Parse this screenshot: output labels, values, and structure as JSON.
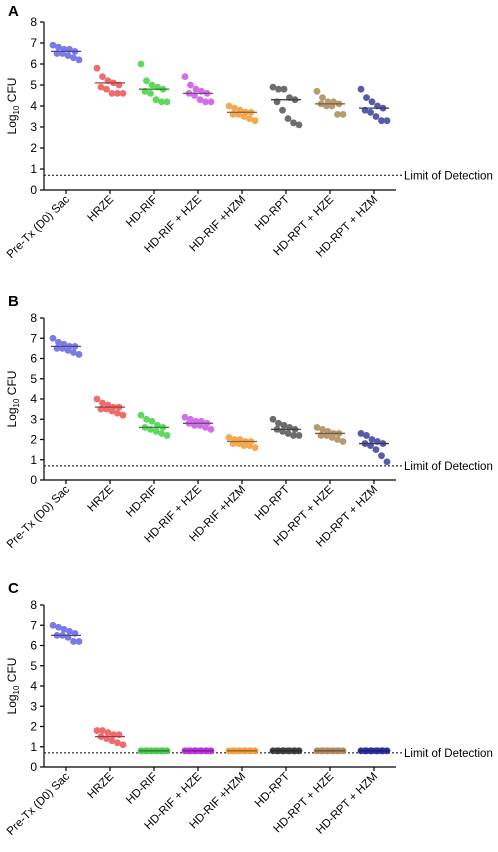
{
  "chart_data": [
    {
      "type": "dot",
      "panel_label": "A",
      "ylabel_main": "Log",
      "ylabel_sub": "10",
      "ylabel_unit": "CFU",
      "categories": [
        "Pre-Tx (D0) Sac",
        "HRZE",
        "HD-RIF",
        "HD-RIF + HZE",
        "HD-RIF +HZM",
        "HD-RPT",
        "HD-RPT + HZE",
        "HD-RPT + HZM"
      ],
      "colors": [
        "#7b7be8",
        "#f06c6c",
        "#5ed85e",
        "#d070e8",
        "#f5a851",
        "#6d6d6d",
        "#b89a70",
        "#5a5aaa"
      ],
      "values": [
        [
          6.9,
          6.8,
          6.7,
          6.7,
          6.6,
          6.5,
          6.5,
          6.4,
          6.3,
          6.2
        ],
        [
          5.8,
          5.4,
          5.2,
          5.1,
          5.0,
          4.9,
          4.8,
          4.6,
          4.6,
          4.6
        ],
        [
          6.0,
          5.2,
          5.0,
          4.9,
          4.8,
          4.7,
          4.6,
          4.3,
          4.2,
          4.2
        ],
        [
          5.4,
          5.0,
          4.8,
          4.7,
          4.6,
          4.6,
          4.5,
          4.3,
          4.2,
          4.2
        ],
        [
          4.0,
          3.9,
          3.8,
          3.7,
          3.7,
          3.6,
          3.6,
          3.5,
          3.4,
          3.3
        ],
        [
          4.9,
          4.8,
          4.8,
          4.4,
          4.3,
          4.2,
          3.8,
          3.4,
          3.2,
          3.1
        ],
        [
          4.7,
          4.4,
          4.2,
          4.2,
          4.1,
          4.1,
          4.0,
          4.0,
          3.6,
          3.6
        ],
        [
          4.8,
          4.4,
          4.2,
          4.0,
          3.9,
          3.8,
          3.7,
          3.5,
          3.3,
          3.3
        ]
      ],
      "centers": [
        6.6,
        5.1,
        4.8,
        4.6,
        3.7,
        4.3,
        4.1,
        3.9
      ],
      "ylim": [
        0,
        8
      ],
      "yticks": [
        0,
        1,
        2,
        3,
        4,
        5,
        6,
        7,
        8
      ],
      "detection_limit": 0.7,
      "detection_label": "Limit of Detection"
    },
    {
      "type": "dot",
      "panel_label": "B",
      "ylabel_main": "Log",
      "ylabel_sub": "10",
      "ylabel_unit": "CFU",
      "categories": [
        "Pre-Tx (D0) Sac",
        "HRZE",
        "HD-RIF",
        "HD-RIF + HZE",
        "HD-RIF +HZM",
        "HD-RPT",
        "HD-RPT + HZE",
        "HD-RPT + HZM"
      ],
      "colors": [
        "#7b7be8",
        "#f06c6c",
        "#5ed85e",
        "#d070e8",
        "#f5a851",
        "#6d6d6d",
        "#b89a70",
        "#5a5aaa"
      ],
      "values": [
        [
          7.0,
          6.8,
          6.7,
          6.6,
          6.6,
          6.5,
          6.5,
          6.4,
          6.3,
          6.2
        ],
        [
          4.0,
          3.8,
          3.7,
          3.6,
          3.6,
          3.5,
          3.5,
          3.4,
          3.3,
          3.2
        ],
        [
          3.2,
          3.0,
          2.9,
          2.7,
          2.6,
          2.6,
          2.5,
          2.4,
          2.3,
          2.2
        ],
        [
          3.1,
          3.0,
          2.9,
          2.9,
          2.8,
          2.8,
          2.7,
          2.7,
          2.6,
          2.5
        ],
        [
          2.1,
          2.0,
          2.0,
          1.9,
          1.9,
          1.8,
          1.8,
          1.7,
          1.7,
          1.6
        ],
        [
          3.0,
          2.8,
          2.7,
          2.6,
          2.5,
          2.5,
          2.4,
          2.3,
          2.2,
          2.2
        ],
        [
          2.6,
          2.5,
          2.4,
          2.3,
          2.3,
          2.2,
          2.2,
          2.1,
          2.0,
          1.9
        ],
        [
          2.3,
          2.2,
          2.0,
          1.9,
          1.8,
          1.8,
          1.7,
          1.5,
          1.2,
          0.9
        ]
      ],
      "centers": [
        6.6,
        3.6,
        2.6,
        2.8,
        1.9,
        2.5,
        2.3,
        1.8
      ],
      "ylim": [
        0,
        8
      ],
      "yticks": [
        0,
        1,
        2,
        3,
        4,
        5,
        6,
        7,
        8
      ],
      "detection_limit": 0.7,
      "detection_label": "Limit of Detection"
    },
    {
      "type": "dot",
      "panel_label": "C",
      "ylabel_main": "Log",
      "ylabel_sub": "10",
      "ylabel_unit": "CFU",
      "categories": [
        "Pre-Tx (D0) Sac",
        "HRZE",
        "HD-RIF",
        "HD-RIF + HZE",
        "HD-RIF +HZM",
        "HD-RPT",
        "HD-RPT + HZE",
        "HD-RPT + HZM"
      ],
      "colors": [
        "#7b7be8",
        "#f06c6c",
        "#4ccc4c",
        "#c030e0",
        "#f5a040",
        "#404040",
        "#b08a60",
        "#3030a0"
      ],
      "values": [
        [
          7.0,
          6.9,
          6.8,
          6.7,
          6.6,
          6.5,
          6.5,
          6.4,
          6.2,
          6.2
        ],
        [
          1.8,
          1.8,
          1.7,
          1.6,
          1.6,
          1.5,
          1.4,
          1.3,
          1.2,
          1.1
        ],
        [
          0.8,
          0.8,
          0.8,
          0.8,
          0.8,
          0.8,
          0.8,
          0.8,
          0.8,
          0.8
        ],
        [
          0.8,
          0.8,
          0.8,
          0.8,
          0.8,
          0.8,
          0.8,
          0.8,
          0.8,
          0.8
        ],
        [
          0.8,
          0.8,
          0.8,
          0.8,
          0.8,
          0.8,
          0.8,
          0.8,
          0.8,
          0.8
        ],
        [
          0.8,
          0.8,
          0.8,
          0.8,
          0.8,
          0.8,
          0.8,
          0.8,
          0.8,
          0.8
        ],
        [
          0.8,
          0.8,
          0.8,
          0.8,
          0.8,
          0.8,
          0.8,
          0.8,
          0.8,
          0.8
        ],
        [
          0.8,
          0.8,
          0.8,
          0.8,
          0.8,
          0.8,
          0.8,
          0.8,
          0.8,
          0.8
        ]
      ],
      "centers": [
        6.5,
        1.5,
        0.8,
        0.8,
        0.8,
        0.8,
        0.8,
        0.8
      ],
      "ylim": [
        0,
        8
      ],
      "yticks": [
        0,
        1,
        2,
        3,
        4,
        5,
        6,
        7,
        8
      ],
      "detection_limit": 0.7,
      "detection_label": "Limit of Detection"
    }
  ]
}
